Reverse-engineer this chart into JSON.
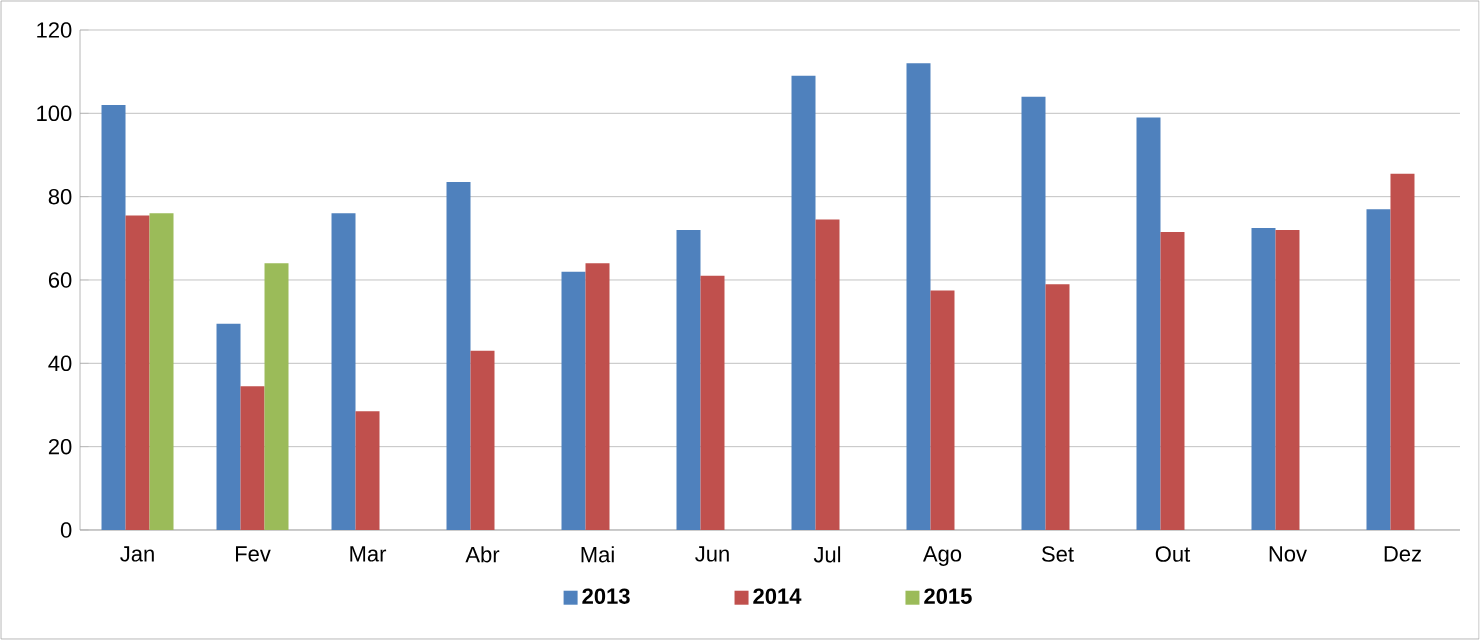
{
  "chart_data": {
    "type": "bar",
    "categories": [
      "Jan",
      "Fev",
      "Mar",
      "Abr",
      "Mai",
      "Jun",
      "Jul",
      "Ago",
      "Set",
      "Out",
      "Nov",
      "Dez"
    ],
    "series": [
      {
        "name": "2013",
        "color": "#4f81bd",
        "values": [
          102,
          49.5,
          76,
          83.5,
          62,
          72,
          109,
          112,
          104,
          99,
          72.5,
          77
        ]
      },
      {
        "name": "2014",
        "color": "#c0504d",
        "values": [
          75.5,
          34.5,
          28.5,
          43,
          64,
          61,
          74.5,
          57.5,
          59,
          71.5,
          72,
          85.5
        ]
      },
      {
        "name": "2015",
        "color": "#9bbb59",
        "values": [
          76,
          64,
          null,
          null,
          null,
          null,
          null,
          null,
          null,
          null,
          null,
          null
        ]
      }
    ],
    "ylim": [
      0,
      120
    ],
    "yticks": [
      0,
      20,
      40,
      60,
      80,
      100,
      120
    ],
    "grid": "y",
    "legend": "bottom"
  }
}
